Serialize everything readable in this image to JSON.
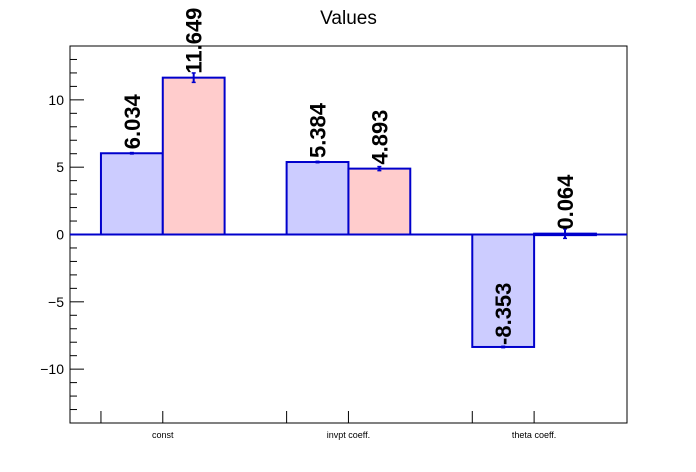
{
  "chart_data": {
    "type": "bar",
    "title": "Values",
    "categories": [
      "const",
      "invpt coeff.",
      "theta coeff."
    ],
    "series": [
      {
        "values": [
          6.034,
          5.384,
          -8.353
        ],
        "errors": [
          0.05,
          0.05,
          0.05
        ],
        "labels": [
          "6.034",
          "5.384",
          "-8.353"
        ]
      },
      {
        "values": [
          11.649,
          4.893,
          0.064
        ],
        "errors": [
          0.35,
          0.15,
          0.35
        ],
        "labels": [
          "11.649",
          "4.893",
          "0.064"
        ]
      }
    ],
    "ylim": [
      -14,
      14
    ],
    "yticks": [
      -10,
      -5,
      0,
      5,
      10
    ],
    "ytick_labels": [
      "−10",
      "−5",
      "0",
      "5",
      "10"
    ],
    "minor_tick_step": 1,
    "grid": false,
    "legend": "none"
  },
  "colors": {
    "series1_fill": "#ccccff",
    "series2_fill": "#ffcccc",
    "bar_outline": "#0000cc",
    "axis": "#000000"
  }
}
